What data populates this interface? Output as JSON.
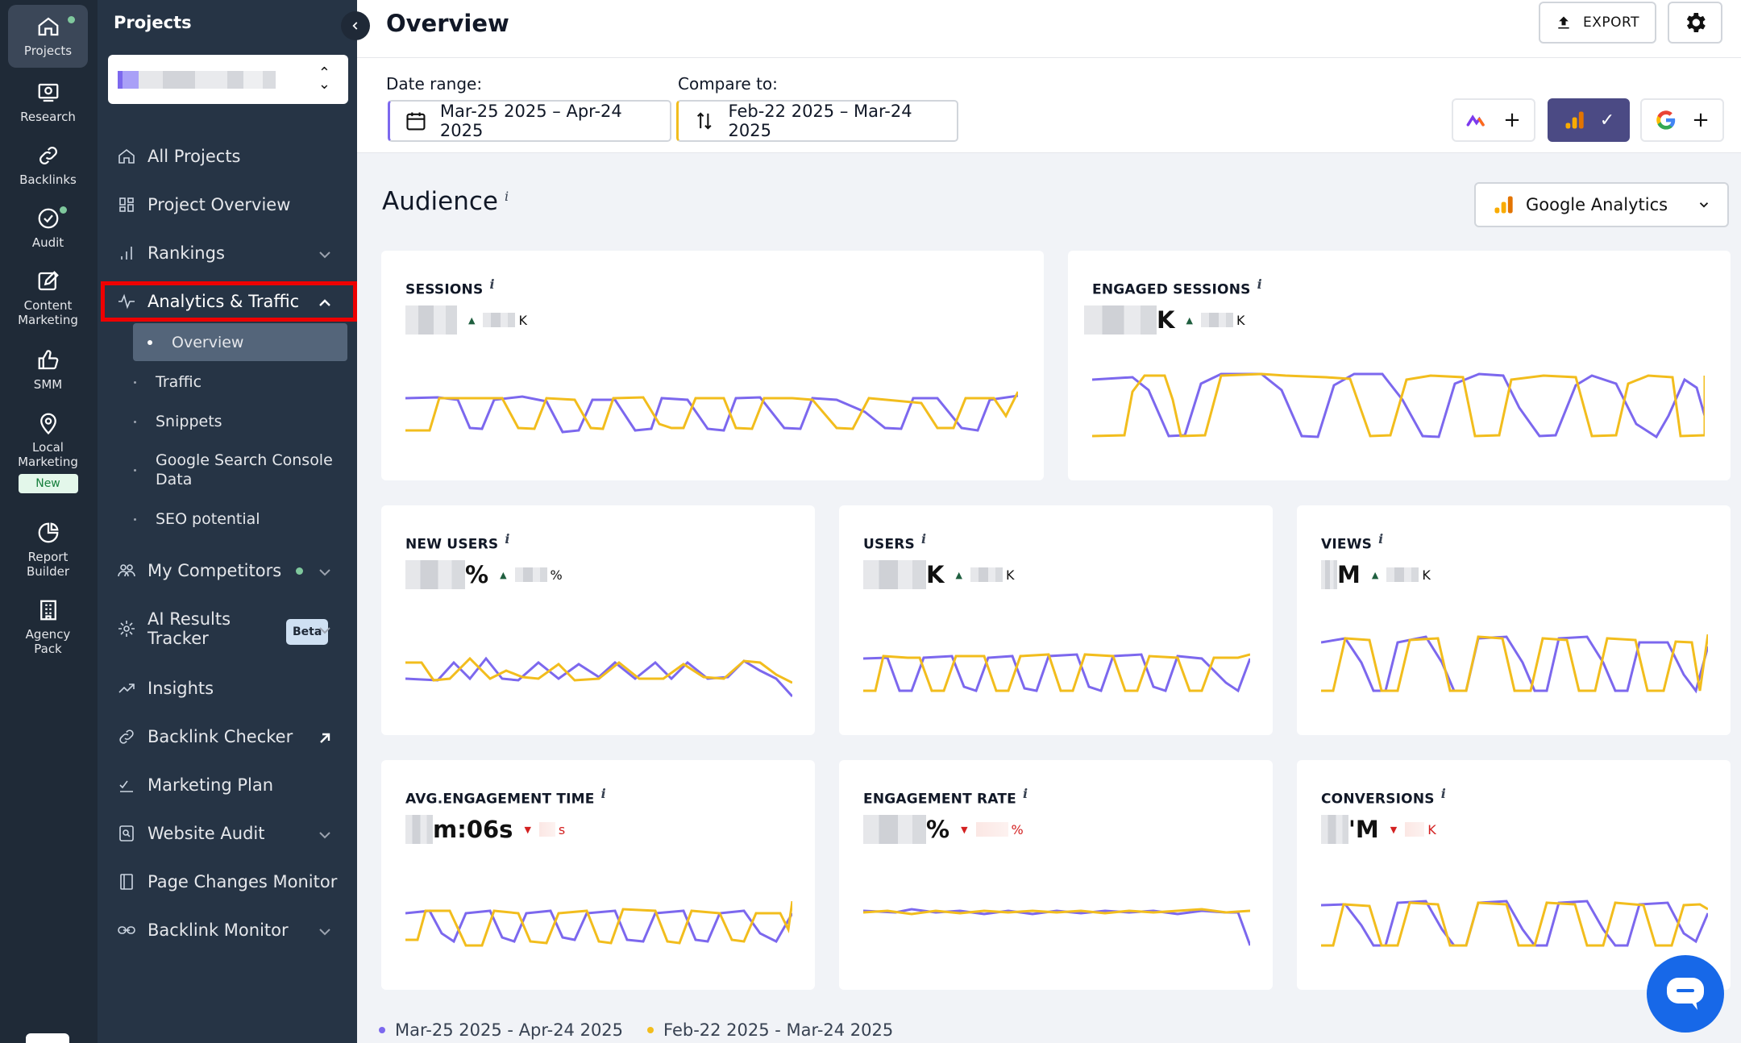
{
  "rail": {
    "items": [
      {
        "label": "Projects",
        "icon": "home-icon"
      },
      {
        "label": "Research",
        "icon": "research-icon"
      },
      {
        "label": "Backlinks",
        "icon": "link-icon"
      },
      {
        "label": "Audit",
        "icon": "audit-icon"
      },
      {
        "label": "Content Marketing",
        "icon": "edit-icon"
      },
      {
        "label": "SMM",
        "icon": "thumbs-up-icon"
      },
      {
        "label": "Local Marketing",
        "icon": "map-pin-icon"
      },
      {
        "label": "Report Builder",
        "icon": "pie-chart-icon"
      },
      {
        "label": "Agency Pack",
        "icon": "building-icon"
      }
    ],
    "new_badge": "New"
  },
  "sidebar": {
    "title": "Projects",
    "nav": [
      {
        "label": "All Projects"
      },
      {
        "label": "Project Overview"
      },
      {
        "label": "Rankings"
      },
      {
        "label": "Analytics & Traffic"
      },
      {
        "label": "My Competitors"
      },
      {
        "label": "AI Results Tracker",
        "badge": "Beta"
      },
      {
        "label": "Insights"
      },
      {
        "label": "Backlink Checker"
      },
      {
        "label": "Marketing Plan"
      },
      {
        "label": "Website Audit"
      },
      {
        "label": "Page Changes Monitor"
      },
      {
        "label": "Backlink Monitor"
      }
    ],
    "sub_items": [
      {
        "label": "Overview"
      },
      {
        "label": "Traffic"
      },
      {
        "label": "Snippets"
      },
      {
        "label": "Google Search Console Data"
      },
      {
        "label": "SEO potential"
      }
    ]
  },
  "header": {
    "title": "Overview",
    "export_label": "EXPORT"
  },
  "filters": {
    "date_range_label": "Date range:",
    "date_range_value": "Mar-25 2025 – Apr-24 2025",
    "compare_label": "Compare to:",
    "compare_value": "Feb-22 2025 – Mar-24 2025",
    "plus": "+",
    "check": "✓"
  },
  "audience": {
    "title": "Audience",
    "info": "i",
    "source_select": "Google Analytics"
  },
  "cards": [
    {
      "title": "SESSIONS",
      "value_suffix": "",
      "change_dir": "up",
      "change_suffix": "K"
    },
    {
      "title": "ENGAGED SESSIONS",
      "value_suffix": "K",
      "change_dir": "up",
      "change_suffix": "K"
    },
    {
      "title": "NEW USERS",
      "value_suffix": "%",
      "change_dir": "up",
      "change_suffix": "%"
    },
    {
      "title": "USERS",
      "value_suffix": "K",
      "change_dir": "up",
      "change_suffix": "K"
    },
    {
      "title": "VIEWS",
      "value_suffix": "M",
      "change_dir": "up",
      "change_suffix": "K"
    },
    {
      "title": "AVG.ENGAGEMENT TIME",
      "value_suffix": "m:06s",
      "change_dir": "down",
      "change_suffix": "s"
    },
    {
      "title": "ENGAGEMENT RATE",
      "value_suffix": "%",
      "change_dir": "down",
      "change_suffix": "%"
    },
    {
      "title": "CONVERSIONS",
      "value_suffix": "'M",
      "change_dir": "down",
      "change_suffix": "K"
    }
  ],
  "legend": {
    "current": "Mar-25 2025 - Apr-24 2025",
    "previous": "Feb-22 2025 - Mar-24 2025"
  },
  "colors": {
    "current_series": "#7c68ee",
    "previous_series": "#f2bd1d",
    "highlight": "#ee0000",
    "accent": "#1768e8"
  }
}
